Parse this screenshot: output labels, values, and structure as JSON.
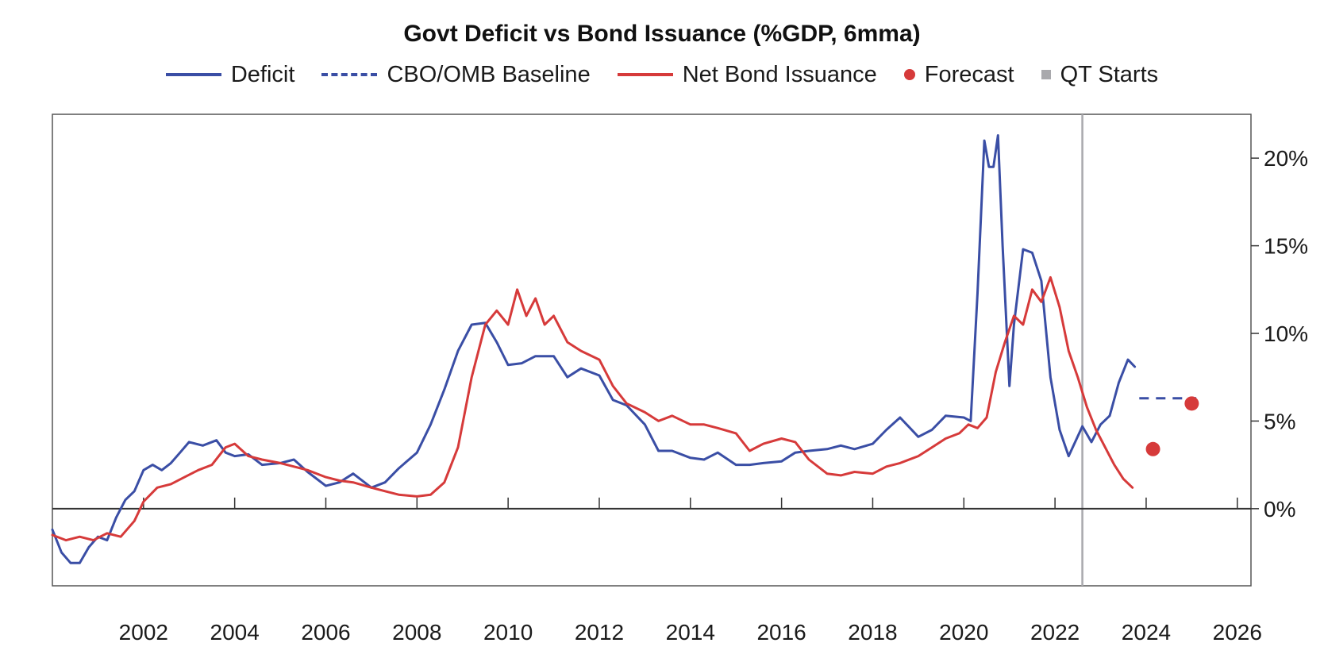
{
  "chart_data": {
    "type": "line",
    "title": "Govt Deficit vs Bond Issuance (%GDP, 6mma)",
    "xlabel": "",
    "ylabel": "",
    "xlim": [
      2000.0,
      2026.3
    ],
    "ylim": [
      -4.4,
      22.5
    ],
    "x_ticks": [
      2002,
      2004,
      2006,
      2008,
      2010,
      2012,
      2014,
      2016,
      2018,
      2020,
      2022,
      2024,
      2026
    ],
    "y_ticks": [
      {
        "value": 0,
        "label": "0%"
      },
      {
        "value": 5,
        "label": "5%"
      },
      {
        "value": 10,
        "label": "10%"
      },
      {
        "value": 15,
        "label": "15%"
      },
      {
        "value": 20,
        "label": "20%"
      }
    ],
    "y_axis_side": "right",
    "grid": false,
    "legend_position": "top",
    "colors": {
      "deficit": "#3a4ea5",
      "baseline": "#3a4ea5",
      "issuance": "#d63a3a",
      "forecast": "#d63a3a",
      "qt": "#a9a9ad",
      "zero_line": "#333333"
    },
    "legend": [
      {
        "label": "Deficit",
        "style": "line",
        "color": "#3a4ea5"
      },
      {
        "label": "CBO/OMB Baseline",
        "style": "dash",
        "color": "#3a4ea5"
      },
      {
        "label": "Net Bond Issuance",
        "style": "line",
        "color": "#d63a3a"
      },
      {
        "label": "Forecast",
        "style": "dot",
        "color": "#d63a3a"
      },
      {
        "label": "QT Starts",
        "style": "square",
        "color": "#a9a9ad"
      }
    ],
    "series": [
      {
        "name": "Deficit",
        "style": "solid",
        "color": "#3a4ea5",
        "x": [
          2000.0,
          2000.2,
          2000.4,
          2000.6,
          2000.8,
          2001.0,
          2001.2,
          2001.4,
          2001.6,
          2001.8,
          2002.0,
          2002.2,
          2002.4,
          2002.6,
          2002.8,
          2003.0,
          2003.3,
          2003.6,
          2003.8,
          2004.0,
          2004.3,
          2004.6,
          2005.0,
          2005.3,
          2005.6,
          2006.0,
          2006.3,
          2006.6,
          2007.0,
          2007.3,
          2007.6,
          2008.0,
          2008.3,
          2008.6,
          2008.9,
          2009.2,
          2009.5,
          2009.75,
          2010.0,
          2010.3,
          2010.6,
          2011.0,
          2011.3,
          2011.6,
          2012.0,
          2012.3,
          2012.6,
          2013.0,
          2013.3,
          2013.6,
          2014.0,
          2014.3,
          2014.6,
          2015.0,
          2015.3,
          2015.6,
          2016.0,
          2016.3,
          2016.6,
          2017.0,
          2017.3,
          2017.6,
          2018.0,
          2018.3,
          2018.6,
          2019.0,
          2019.3,
          2019.6,
          2020.0,
          2020.15,
          2020.3,
          2020.45,
          2020.55,
          2020.65,
          2020.75,
          2020.85,
          2021.0,
          2021.1,
          2021.3,
          2021.5,
          2021.7,
          2021.9,
          2022.1,
          2022.3,
          2022.6,
          2022.8,
          2023.0,
          2023.2,
          2023.4,
          2023.6,
          2023.75
        ],
        "values": [
          -1.2,
          -2.5,
          -3.1,
          -3.1,
          -2.2,
          -1.6,
          -1.8,
          -0.5,
          0.5,
          1.0,
          2.2,
          2.5,
          2.2,
          2.6,
          3.2,
          3.8,
          3.6,
          3.9,
          3.2,
          3.0,
          3.1,
          2.5,
          2.6,
          2.8,
          2.1,
          1.3,
          1.5,
          2.0,
          1.2,
          1.5,
          2.3,
          3.2,
          4.8,
          6.8,
          9.0,
          10.5,
          10.6,
          9.5,
          8.2,
          8.3,
          8.7,
          8.7,
          7.5,
          8.0,
          7.6,
          6.2,
          5.9,
          4.8,
          3.3,
          3.3,
          2.9,
          2.8,
          3.2,
          2.5,
          2.5,
          2.6,
          2.7,
          3.2,
          3.3,
          3.4,
          3.6,
          3.4,
          3.7,
          4.5,
          5.2,
          4.1,
          4.5,
          5.3,
          5.2,
          5.0,
          12.3,
          21.0,
          19.5,
          19.5,
          21.3,
          15.0,
          7.0,
          10.5,
          14.8,
          14.6,
          13.0,
          7.5,
          4.5,
          3.0,
          4.7,
          3.8,
          4.8,
          5.3,
          7.2,
          8.5,
          8.1
        ]
      },
      {
        "name": "CBO/OMB Baseline",
        "style": "dashed",
        "color": "#3a4ea5",
        "x": [
          2023.85,
          2025.1
        ],
        "values": [
          6.3,
          6.3
        ]
      },
      {
        "name": "Net Bond Issuance",
        "style": "solid",
        "color": "#d63a3a",
        "x": [
          2000.0,
          2000.3,
          2000.6,
          2000.9,
          2001.2,
          2001.5,
          2001.8,
          2002.0,
          2002.3,
          2002.6,
          2002.9,
          2003.2,
          2003.5,
          2003.8,
          2004.0,
          2004.3,
          2004.6,
          2005.0,
          2005.3,
          2005.6,
          2006.0,
          2006.3,
          2006.6,
          2007.0,
          2007.3,
          2007.6,
          2008.0,
          2008.3,
          2008.6,
          2008.9,
          2009.2,
          2009.5,
          2009.75,
          2010.0,
          2010.2,
          2010.4,
          2010.6,
          2010.8,
          2011.0,
          2011.3,
          2011.6,
          2012.0,
          2012.3,
          2012.6,
          2013.0,
          2013.3,
          2013.6,
          2014.0,
          2014.3,
          2014.6,
          2015.0,
          2015.3,
          2015.6,
          2016.0,
          2016.3,
          2016.6,
          2017.0,
          2017.3,
          2017.6,
          2018.0,
          2018.3,
          2018.6,
          2019.0,
          2019.3,
          2019.6,
          2019.9,
          2020.1,
          2020.3,
          2020.5,
          2020.7,
          2020.9,
          2021.1,
          2021.3,
          2021.5,
          2021.7,
          2021.9,
          2022.1,
          2022.3,
          2022.5,
          2022.7,
          2022.9,
          2023.1,
          2023.3,
          2023.5,
          2023.7
        ],
        "values": [
          -1.5,
          -1.8,
          -1.6,
          -1.8,
          -1.4,
          -1.6,
          -0.7,
          0.4,
          1.2,
          1.4,
          1.8,
          2.2,
          2.5,
          3.5,
          3.7,
          3.0,
          2.8,
          2.6,
          2.4,
          2.2,
          1.8,
          1.6,
          1.5,
          1.2,
          1.0,
          0.8,
          0.7,
          0.8,
          1.5,
          3.5,
          7.5,
          10.5,
          11.3,
          10.5,
          12.5,
          11.0,
          12.0,
          10.5,
          11.0,
          9.5,
          9.0,
          8.5,
          7.0,
          6.0,
          5.5,
          5.0,
          5.3,
          4.8,
          4.8,
          4.6,
          4.3,
          3.3,
          3.7,
          4.0,
          3.8,
          2.8,
          2.0,
          1.9,
          2.1,
          2.0,
          2.4,
          2.6,
          3.0,
          3.5,
          4.0,
          4.3,
          4.8,
          4.6,
          5.2,
          7.8,
          9.5,
          11.0,
          10.5,
          12.5,
          11.8,
          13.2,
          11.5,
          9.0,
          7.5,
          5.8,
          4.5,
          3.5,
          2.5,
          1.7,
          1.2
        ]
      }
    ],
    "forecast_points": [
      {
        "x": 2024.15,
        "value": 3.4
      },
      {
        "x": 2025.0,
        "value": 6.0
      }
    ],
    "qt_starts_x": 2022.6
  }
}
